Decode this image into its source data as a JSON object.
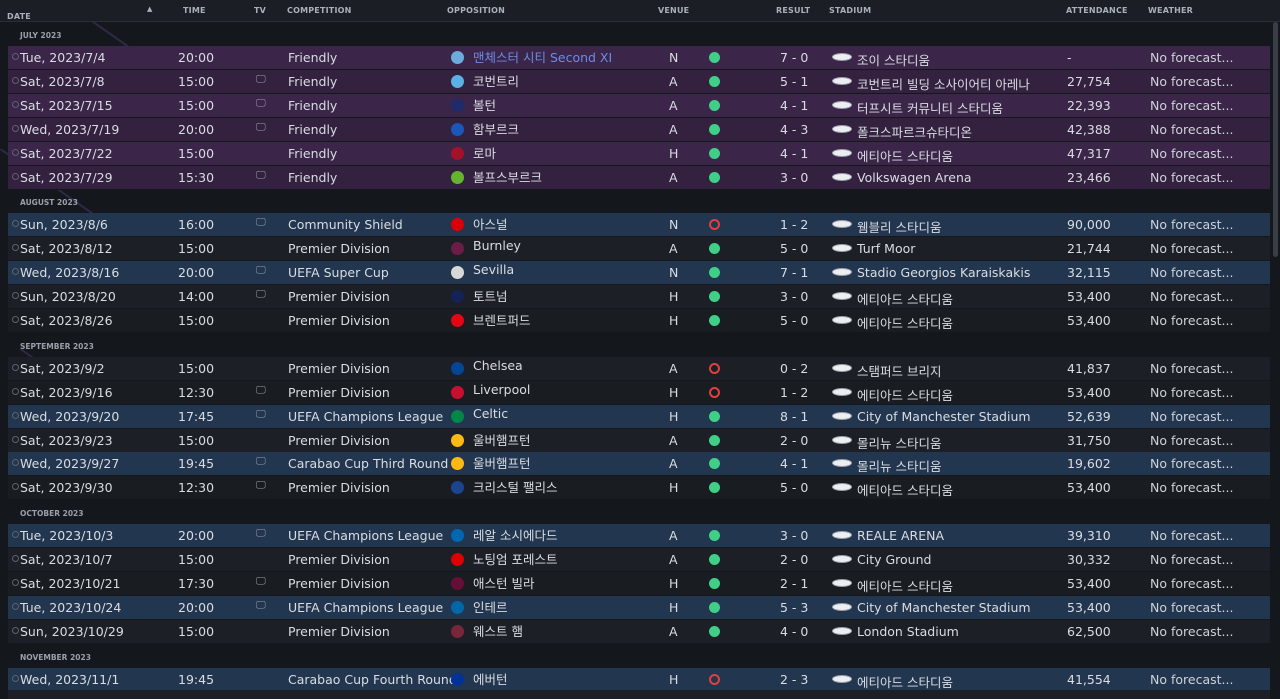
{
  "header": {
    "date": "DATE",
    "time": "TIME",
    "tv": "TV",
    "competition": "COMPETITION",
    "opposition": "OPPOSITION",
    "venue": "VENUE",
    "result": "RESULT",
    "stadium": "STADIUM",
    "attendance": "ATTENDANCE",
    "weather": "WEATHER",
    "sort_icon": "sort-ascending-icon"
  },
  "months": [
    {
      "label": "JULY 2023"
    },
    {
      "label": "AUGUST 2023"
    },
    {
      "label": "SEPTEMBER 2023"
    },
    {
      "label": "OCTOBER 2023"
    },
    {
      "label": "NOVEMBER 2023"
    }
  ],
  "fixtures": [
    {
      "date": "Tue, 2023/7/4",
      "time": "20:00",
      "tv": false,
      "competition": "Friendly",
      "opponent": "맨체스터 시티 Second XI",
      "badge": "#6cabdd",
      "venue": "N",
      "outcome": "win",
      "score": "7 - 0",
      "stadium": "조이 스타디움",
      "attendance": "-",
      "weather": "No forecast...",
      "style": "friendly"
    },
    {
      "date": "Sat, 2023/7/8",
      "time": "15:00",
      "tv": true,
      "competition": "Friendly",
      "opponent": "코번트리",
      "badge": "#5bb1e6",
      "venue": "A",
      "outcome": "win",
      "score": "5 - 1",
      "stadium": "코번트리 빌딩 소사이어티 아레나",
      "attendance": "27,754",
      "weather": "No forecast...",
      "style": "friendly alt"
    },
    {
      "date": "Sat, 2023/7/15",
      "time": "15:00",
      "tv": true,
      "competition": "Friendly",
      "opponent": "볼턴",
      "badge": "#1f2b6b",
      "venue": "A",
      "outcome": "win",
      "score": "4 - 1",
      "stadium": "터프시트 커뮤니티 스타디움",
      "attendance": "22,393",
      "weather": "No forecast...",
      "style": "friendly"
    },
    {
      "date": "Wed, 2023/7/19",
      "time": "20:00",
      "tv": true,
      "competition": "Friendly",
      "opponent": "함부르크",
      "badge": "#1a57b8",
      "venue": "A",
      "outcome": "win",
      "score": "4 - 3",
      "stadium": "폴크스파르크슈타디온",
      "attendance": "42,388",
      "weather": "No forecast...",
      "style": "friendly alt"
    },
    {
      "date": "Sat, 2023/7/22",
      "time": "15:00",
      "tv": false,
      "competition": "Friendly",
      "opponent": "로마",
      "badge": "#a3122a",
      "venue": "H",
      "outcome": "win",
      "score": "4 - 1",
      "stadium": "에티아드 스타디움",
      "attendance": "47,317",
      "weather": "No forecast...",
      "style": "friendly"
    },
    {
      "date": "Sat, 2023/7/29",
      "time": "15:30",
      "tv": true,
      "competition": "Friendly",
      "opponent": "볼프스부르크",
      "badge": "#65b32e",
      "venue": "A",
      "outcome": "win",
      "score": "3 - 0",
      "stadium": "Volkswagen Arena",
      "attendance": "23,466",
      "weather": "No forecast...",
      "style": "friendly alt"
    },
    {
      "date": "Sun, 2023/8/6",
      "time": "16:00",
      "tv": true,
      "competition": "Community Shield",
      "opponent": "아스널",
      "badge": "#db0007",
      "venue": "N",
      "outcome": "loss",
      "score": "1 - 2",
      "stadium": "웸블리 스타디움",
      "attendance": "90,000",
      "weather": "No forecast...",
      "style": "hl"
    },
    {
      "date": "Sat, 2023/8/12",
      "time": "15:00",
      "tv": false,
      "competition": "Premier Division",
      "opponent": "Burnley",
      "badge": "#6c1d45",
      "venue": "A",
      "outcome": "win",
      "score": "5 - 0",
      "stadium": "Turf Moor",
      "attendance": "21,744",
      "weather": "No forecast...",
      "style": "plain"
    },
    {
      "date": "Wed, 2023/8/16",
      "time": "20:00",
      "tv": true,
      "competition": "UEFA Super Cup",
      "opponent": "Sevilla",
      "badge": "#d8d8d8",
      "venue": "N",
      "outcome": "win",
      "score": "7 - 1",
      "stadium": "Stadio Georgios Karaiskakis",
      "attendance": "32,115",
      "weather": "No forecast...",
      "style": "hl"
    },
    {
      "date": "Sun, 2023/8/20",
      "time": "14:00",
      "tv": true,
      "competition": "Premier Division",
      "opponent": "토트넘",
      "badge": "#132257",
      "venue": "H",
      "outcome": "win",
      "score": "3 - 0",
      "stadium": "에티아드 스타디움",
      "attendance": "53,400",
      "weather": "No forecast...",
      "style": "plain"
    },
    {
      "date": "Sat, 2023/8/26",
      "time": "15:00",
      "tv": false,
      "competition": "Premier Division",
      "opponent": "브렌트퍼드",
      "badge": "#e30613",
      "venue": "H",
      "outcome": "win",
      "score": "5 - 0",
      "stadium": "에티아드 스타디움",
      "attendance": "53,400",
      "weather": "No forecast...",
      "style": "plain alt"
    },
    {
      "date": "Sat, 2023/9/2",
      "time": "15:00",
      "tv": false,
      "competition": "Premier Division",
      "opponent": "Chelsea",
      "badge": "#034694",
      "venue": "A",
      "outcome": "loss",
      "score": "0 - 2",
      "stadium": "스탬퍼드 브리지",
      "attendance": "41,837",
      "weather": "No forecast...",
      "style": "plain"
    },
    {
      "date": "Sat, 2023/9/16",
      "time": "12:30",
      "tv": true,
      "competition": "Premier Division",
      "opponent": "Liverpool",
      "badge": "#c8102e",
      "venue": "H",
      "outcome": "loss",
      "score": "1 - 2",
      "stadium": "에티아드 스타디움",
      "attendance": "53,400",
      "weather": "No forecast...",
      "style": "plain alt"
    },
    {
      "date": "Wed, 2023/9/20",
      "time": "17:45",
      "tv": true,
      "competition": "UEFA Champions League",
      "opponent": "Celtic",
      "badge": "#018749",
      "venue": "H",
      "outcome": "win",
      "score": "8 - 1",
      "stadium": "City of Manchester Stadium",
      "attendance": "52,639",
      "weather": "No forecast...",
      "style": "hl"
    },
    {
      "date": "Sat, 2023/9/23",
      "time": "15:00",
      "tv": false,
      "competition": "Premier Division",
      "opponent": "울버햄프턴",
      "badge": "#fdb913",
      "venue": "A",
      "outcome": "win",
      "score": "2 - 0",
      "stadium": "몰리뉴 스타디움",
      "attendance": "31,750",
      "weather": "No forecast...",
      "style": "plain"
    },
    {
      "date": "Wed, 2023/9/27",
      "time": "19:45",
      "tv": true,
      "competition": "Carabao Cup Third Round",
      "opponent": "울버햄프턴",
      "badge": "#fdb913",
      "venue": "A",
      "outcome": "win",
      "score": "4 - 1",
      "stadium": "몰리뉴 스타디움",
      "attendance": "19,602",
      "weather": "No forecast...",
      "style": "hl"
    },
    {
      "date": "Sat, 2023/9/30",
      "time": "12:30",
      "tv": true,
      "competition": "Premier Division",
      "opponent": "크리스털 팰리스",
      "badge": "#1b458f",
      "venue": "H",
      "outcome": "win",
      "score": "5 - 0",
      "stadium": "에티아드 스타디움",
      "attendance": "53,400",
      "weather": "No forecast...",
      "style": "plain alt"
    },
    {
      "date": "Tue, 2023/10/3",
      "time": "20:00",
      "tv": true,
      "competition": "UEFA Champions League",
      "opponent": "레알 소시에다드",
      "badge": "#0067b1",
      "venue": "A",
      "outcome": "win",
      "score": "3 - 0",
      "stadium": "REALE ARENA",
      "attendance": "39,310",
      "weather": "No forecast...",
      "style": "hl"
    },
    {
      "date": "Sat, 2023/10/7",
      "time": "15:00",
      "tv": false,
      "competition": "Premier Division",
      "opponent": "노팅엄 포레스트",
      "badge": "#dd0000",
      "venue": "A",
      "outcome": "win",
      "score": "2 - 0",
      "stadium": "City Ground",
      "attendance": "30,332",
      "weather": "No forecast...",
      "style": "plain"
    },
    {
      "date": "Sat, 2023/10/21",
      "time": "17:30",
      "tv": true,
      "competition": "Premier Division",
      "opponent": "애스턴 빌라",
      "badge": "#670e36",
      "venue": "H",
      "outcome": "win",
      "score": "2 - 1",
      "stadium": "에티아드 스타디움",
      "attendance": "53,400",
      "weather": "No forecast...",
      "style": "plain alt"
    },
    {
      "date": "Tue, 2023/10/24",
      "time": "20:00",
      "tv": true,
      "competition": "UEFA Champions League",
      "opponent": "인테르",
      "badge": "#0068a8",
      "venue": "H",
      "outcome": "win",
      "score": "5 - 3",
      "stadium": "City of Manchester Stadium",
      "attendance": "53,400",
      "weather": "No forecast...",
      "style": "hl"
    },
    {
      "date": "Sun, 2023/10/29",
      "time": "15:00",
      "tv": false,
      "competition": "Premier Division",
      "opponent": "웨스트 햄",
      "badge": "#7a263a",
      "venue": "A",
      "outcome": "win",
      "score": "4 - 0",
      "stadium": "London Stadium",
      "attendance": "62,500",
      "weather": "No forecast...",
      "style": "plain"
    },
    {
      "date": "Wed, 2023/11/1",
      "time": "19:45",
      "tv": false,
      "competition": "Carabao Cup Fourth Round",
      "opponent": "에버턴",
      "badge": "#003399",
      "venue": "H",
      "outcome": "loss",
      "score": "2 - 3",
      "stadium": "에티아드 스타디움",
      "attendance": "41,554",
      "weather": "No forecast...",
      "style": "hl"
    }
  ]
}
